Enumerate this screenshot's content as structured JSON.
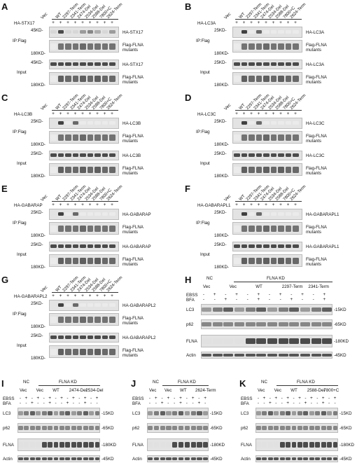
{
  "mutant_lanes": [
    "Vec",
    "WT",
    "2297-Term",
    "2341-Term",
    "2474-Del",
    "2534-Del",
    "2588-Del",
    "7800+C",
    "2624-Term"
  ],
  "common": {
    "ip_flag": "IP:Flag",
    "input": "Input",
    "flag_mutants": [
      "Flag-FLNA",
      "mutants"
    ],
    "kd_180": "180KD-",
    "kd_45": "45KD-",
    "kd_25": "25KD-"
  },
  "panels": [
    {
      "label": "A",
      "ha": "HA-STX17",
      "ha_band": "HA-STX17",
      "mw": "45KD-"
    },
    {
      "label": "B",
      "ha": "HA-LC3A",
      "ha_band": "HA-LC3A",
      "mw": "25KD-"
    },
    {
      "label": "C",
      "ha": "HA-LC3B",
      "ha_band": "HA-LC3B",
      "mw": "25KD-"
    },
    {
      "label": "D",
      "ha": "HA-LC3C",
      "ha_band": "HA-LC3C",
      "mw": "25KD-"
    },
    {
      "label": "E",
      "ha": "HA-GABARAP",
      "ha_band": "HA-GABARAP",
      "mw": "25KD-"
    },
    {
      "label": "F",
      "ha": "HA-GABARAPL1",
      "ha_band": "HA-GABARAPL1",
      "mw": "25KD-"
    },
    {
      "label": "G",
      "ha": "HA-GABARAPL2",
      "ha_band": "HA-GABARAPL2",
      "mw": "25KD-"
    }
  ],
  "kd_panels": {
    "H": {
      "label": "H",
      "groups": [
        "Vec",
        "Vec",
        "WT",
        "2297-Term",
        "2341-Term"
      ]
    },
    "I": {
      "label": "I",
      "groups": [
        "Vec",
        "Vec",
        "WT",
        "2474-Del",
        "2534-Del"
      ]
    },
    "J": {
      "label": "J",
      "groups": [
        "Vec",
        "Vec",
        "WT",
        "2624-Term"
      ]
    },
    "K": {
      "label": "K",
      "groups": [
        "Vec",
        "Vec",
        "WT",
        "2588-Del",
        "7800+C"
      ]
    },
    "nc": "NC",
    "flna_kd": "FLNA KD",
    "ebss": "EBSS",
    "bfa": "BFA",
    "rows": [
      "LC3",
      "p62",
      "FLNA",
      "Actin"
    ],
    "mw": [
      "-15KD",
      "-65KD",
      "-180KD",
      "-45KD"
    ]
  }
}
